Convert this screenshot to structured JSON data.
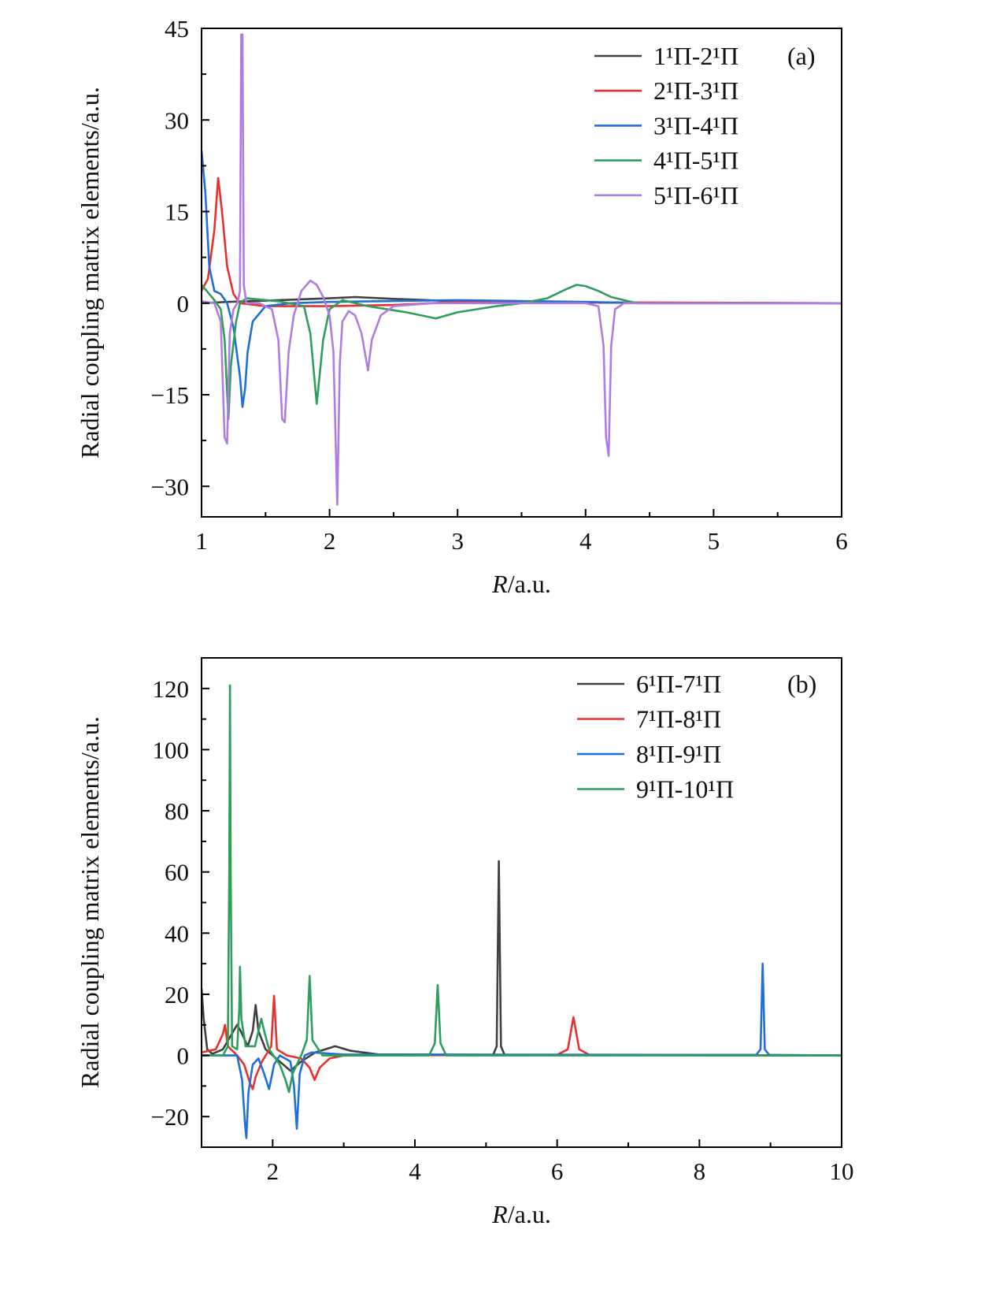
{
  "chart_data": [
    {
      "type": "line",
      "panel_label": "(a)",
      "xlabel_var": "R",
      "xlabel_unit": "/a.u.",
      "ylabel": "Radial coupling matrix elements/a.u.",
      "xlim": [
        1,
        6
      ],
      "ylim": [
        -35,
        45
      ],
      "xticks": [
        1,
        2,
        3,
        4,
        5,
        6
      ],
      "xminor": [
        1.5,
        2.5,
        3.5,
        4.5,
        5.5
      ],
      "yticks": [
        -30,
        -15,
        0,
        15,
        30,
        45
      ],
      "ytick_labels": [
        "−30",
        "−15",
        "0",
        "15",
        "30",
        "45"
      ],
      "yminor": [
        -22.5,
        -7.5,
        7.5,
        22.5,
        37.5
      ],
      "grid": false,
      "legend_position": "top-right",
      "series": [
        {
          "name": "1¹Π-2¹Π",
          "color": "#404040",
          "x": [
            1.0,
            1.2,
            1.5,
            2.0,
            2.2,
            2.5,
            3.0,
            3.5,
            4.0,
            6.0
          ],
          "y": [
            0,
            0.2,
            0.4,
            0.8,
            1.0,
            0.7,
            0.3,
            0.2,
            0.1,
            0
          ]
        },
        {
          "name": "2¹Π-3¹Π",
          "color": "#e8312e",
          "x": [
            1.0,
            1.05,
            1.1,
            1.13,
            1.16,
            1.2,
            1.25,
            1.3,
            1.5,
            2.0,
            2.5,
            3.0,
            6.0
          ],
          "y": [
            2,
            4,
            12,
            20.5,
            15,
            6,
            1.5,
            0,
            -0.5,
            -0.5,
            -0.3,
            0.2,
            0
          ]
        },
        {
          "name": "3¹Π-4¹Π",
          "color": "#1f6fd6",
          "x": [
            1.0,
            1.03,
            1.06,
            1.1,
            1.15,
            1.2,
            1.25,
            1.3,
            1.32,
            1.34,
            1.36,
            1.4,
            1.5,
            1.7,
            2.0,
            3.0,
            4.0,
            4.5,
            6.0
          ],
          "y": [
            25,
            18,
            6,
            2,
            1.5,
            0,
            -4,
            -12,
            -17,
            -14,
            -8,
            -3,
            -0.5,
            0,
            0.2,
            0.5,
            0.2,
            0,
            0
          ]
        },
        {
          "name": "4¹Π-5¹Π",
          "color": "#2e9e5b",
          "x": [
            1.0,
            1.1,
            1.15,
            1.18,
            1.21,
            1.23,
            1.27,
            1.3,
            1.35,
            1.6,
            1.8,
            1.85,
            1.9,
            1.95,
            2.0,
            2.1,
            2.3,
            2.6,
            2.83,
            3.0,
            3.3,
            3.5,
            3.7,
            3.85,
            3.93,
            4.0,
            4.1,
            4.2,
            4.4,
            6.0
          ],
          "y": [
            3,
            0.5,
            -1,
            -6,
            -19,
            -10,
            -3,
            0,
            0.8,
            0.3,
            -0.5,
            -5,
            -16.5,
            -6,
            -1,
            0.5,
            -0.5,
            -1.5,
            -2.5,
            -1.5,
            -0.5,
            0,
            0.8,
            2.3,
            3,
            2.8,
            2,
            1,
            0,
            0
          ]
        },
        {
          "name": "5¹Π-6¹Π",
          "color": "#b07ce0",
          "x": [
            1.0,
            1.1,
            1.15,
            1.18,
            1.2,
            1.22,
            1.25,
            1.28,
            1.3,
            1.31,
            1.32,
            1.33,
            1.35,
            1.45,
            1.55,
            1.6,
            1.63,
            1.65,
            1.68,
            1.72,
            1.78,
            1.85,
            1.9,
            1.95,
            2.0,
            2.03,
            2.06,
            2.08,
            2.1,
            2.15,
            2.2,
            2.25,
            2.3,
            2.33,
            2.4,
            2.5,
            2.8,
            4.0,
            4.1,
            4.14,
            4.16,
            4.18,
            4.2,
            4.23,
            4.3,
            6.0
          ],
          "y": [
            0.3,
            0,
            -3,
            -22,
            -23,
            -5,
            -1,
            0,
            2,
            44,
            44,
            3,
            0,
            0,
            -1,
            -6,
            -19,
            -19.5,
            -8,
            -2,
            2,
            3.7,
            3,
            1,
            -2,
            -8,
            -33,
            -10,
            -3,
            -1.3,
            -2,
            -5,
            -11,
            -6,
            -2,
            -0.5,
            0,
            0,
            -0.5,
            -7,
            -22,
            -25,
            -7,
            -1,
            0,
            0
          ]
        }
      ]
    },
    {
      "type": "line",
      "panel_label": "(b)",
      "xlabel_var": "R",
      "xlabel_unit": "/a.u.",
      "ylabel": "Radial coupling matrix elements/a.u.",
      "xlim": [
        1,
        10
      ],
      "ylim": [
        -30,
        130
      ],
      "xticks": [
        2,
        4,
        6,
        8,
        10
      ],
      "xminor": [
        1,
        3,
        5,
        7,
        9
      ],
      "yticks": [
        -20,
        0,
        20,
        40,
        60,
        80,
        100,
        120
      ],
      "ytick_labels": [
        "−20",
        "0",
        "20",
        "40",
        "60",
        "80",
        "100",
        "120"
      ],
      "yminor": [
        -10,
        10,
        30,
        50,
        70,
        90,
        110
      ],
      "grid": false,
      "legend_position": "top-right",
      "series": [
        {
          "name": "6¹Π-7¹Π",
          "color": "#404040",
          "x": [
            1.0,
            1.03,
            1.08,
            1.15,
            1.3,
            1.45,
            1.5,
            1.55,
            1.65,
            1.72,
            1.76,
            1.8,
            1.9,
            2.1,
            2.25,
            2.4,
            2.6,
            2.88,
            3.1,
            3.5,
            5.1,
            5.15,
            5.18,
            5.21,
            5.26,
            10.0
          ],
          "y": [
            22,
            12,
            2,
            0.5,
            2,
            8,
            10,
            8,
            3,
            8,
            16.5,
            8,
            2,
            -2,
            -5,
            -2,
            1,
            3,
            1.5,
            0.3,
            0.2,
            3,
            63.5,
            3,
            0.2,
            0
          ]
        },
        {
          "name": "7¹Π-8¹Π",
          "color": "#e8312e",
          "x": [
            1.0,
            1.2,
            1.3,
            1.33,
            1.37,
            1.5,
            1.6,
            1.68,
            1.72,
            1.76,
            1.85,
            1.98,
            2.02,
            2.06,
            2.2,
            2.4,
            2.52,
            2.59,
            2.66,
            2.8,
            3.0,
            6.0,
            6.15,
            6.23,
            6.31,
            6.45,
            10.0
          ],
          "y": [
            1,
            2,
            7,
            10,
            3,
            0,
            -3,
            -9,
            -11,
            -7,
            -2,
            3,
            19.5,
            2,
            0,
            -1,
            -4,
            -8,
            -4,
            -1,
            0,
            0.2,
            2,
            12.5,
            2,
            0.2,
            0
          ]
        },
        {
          "name": "8¹Π-9¹Π",
          "color": "#1f6fd6",
          "x": [
            1.0,
            1.5,
            1.57,
            1.61,
            1.63,
            1.66,
            1.72,
            1.8,
            1.88,
            1.95,
            2.02,
            2.1,
            2.25,
            2.3,
            2.34,
            2.38,
            2.45,
            2.55,
            3.0,
            8.8,
            8.86,
            8.89,
            8.92,
            8.98,
            10.0
          ],
          "y": [
            0,
            0,
            -8,
            -22,
            -27,
            -12,
            -3,
            -1,
            -6,
            -11,
            -3,
            0,
            -2,
            -10,
            -24,
            -6,
            0,
            1,
            0.3,
            0.2,
            2,
            30,
            2,
            0.2,
            0
          ]
        },
        {
          "name": "9¹Π-10¹Π",
          "color": "#2e9e5b",
          "x": [
            1.0,
            1.3,
            1.37,
            1.39,
            1.4,
            1.41,
            1.43,
            1.5,
            1.53,
            1.54,
            1.56,
            1.62,
            1.75,
            1.82,
            1.84,
            1.88,
            1.95,
            2.1,
            2.18,
            2.23,
            2.28,
            2.4,
            2.48,
            2.52,
            2.56,
            2.7,
            4.2,
            4.28,
            4.32,
            4.36,
            4.44,
            10.0
          ],
          "y": [
            0,
            0,
            3,
            60,
            121,
            60,
            3,
            2,
            15,
            29,
            12,
            3,
            3,
            10,
            12,
            8,
            2,
            -3,
            -8,
            -12,
            -6,
            0,
            5,
            26,
            5,
            0,
            0,
            4,
            23,
            4,
            0,
            0
          ]
        }
      ]
    }
  ]
}
